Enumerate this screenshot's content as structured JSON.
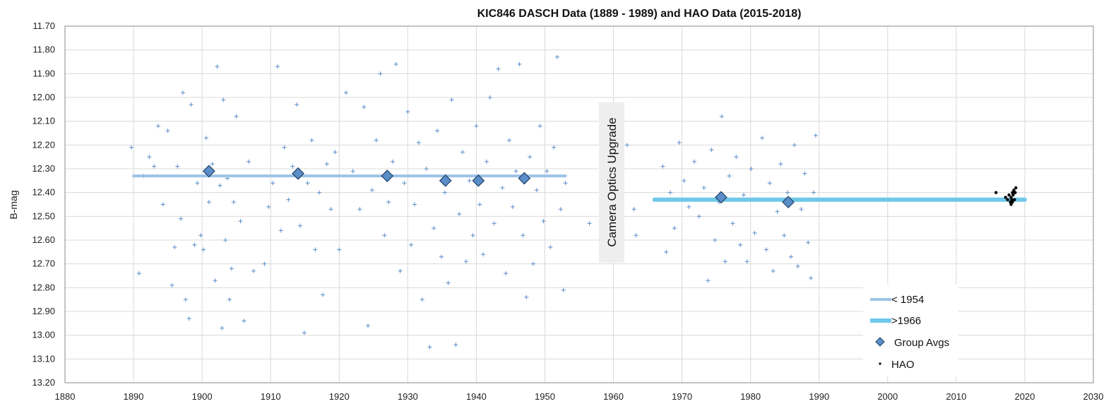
{
  "chart_data": {
    "type": "scatter",
    "title": "KIC846 DASCH Data (1889 - 1989) and HAO Data (2015-2018)",
    "xlabel": "",
    "ylabel": "B-mag",
    "xlim": [
      1880,
      2030
    ],
    "ylim": [
      11.7,
      13.2
    ],
    "y_inverted": true,
    "x_ticks": [
      1880,
      1890,
      1900,
      1910,
      1920,
      1930,
      1940,
      1950,
      1960,
      1970,
      1980,
      1990,
      2000,
      2010,
      2020,
      2030
    ],
    "y_ticks": [
      "11.70",
      "11.80",
      "11.90",
      "12.00",
      "12.10",
      "12.20",
      "12.30",
      "12.40",
      "12.50",
      "12.60",
      "12.70",
      "12.80",
      "12.90",
      "13.00",
      "13.10",
      "13.20"
    ],
    "grid": true,
    "legend_position": "bottom-right",
    "annotation": "Camera Optics Upgrade",
    "series": [
      {
        "name": "< 1954",
        "kind": "line",
        "color": "#9dc3e6",
        "points": [
          [
            1890,
            12.33
          ],
          [
            1953,
            12.33
          ]
        ]
      },
      {
        "name": ">1966",
        "kind": "line",
        "color": "#70c8e8",
        "points": [
          [
            1966,
            12.43
          ],
          [
            2020,
            12.43
          ]
        ]
      },
      {
        "name": "Group Avgs",
        "kind": "marker",
        "color": "#5b8ec9",
        "points": [
          [
            1901,
            12.31
          ],
          [
            1914,
            12.32
          ],
          [
            1927,
            12.33
          ],
          [
            1935.5,
            12.35
          ],
          [
            1940.3,
            12.35
          ],
          [
            1947,
            12.34
          ],
          [
            1975.7,
            12.42
          ],
          [
            1985.5,
            12.44
          ]
        ]
      },
      {
        "name": "HAO",
        "kind": "dot",
        "color": "#000000",
        "points": [
          [
            2015.8,
            12.4
          ],
          [
            2017.2,
            12.42
          ],
          [
            2017.5,
            12.43
          ],
          [
            2017.7,
            12.41
          ],
          [
            2017.9,
            12.44
          ],
          [
            2018.0,
            12.42
          ],
          [
            2018.1,
            12.43
          ],
          [
            2018.2,
            12.4
          ],
          [
            2018.3,
            12.41
          ],
          [
            2018.4,
            12.39
          ],
          [
            2018.5,
            12.43
          ],
          [
            2018.6,
            12.4
          ],
          [
            2018.7,
            12.38
          ],
          [
            2018.0,
            12.45
          ],
          [
            2018.2,
            12.44
          ]
        ]
      },
      {
        "kind": "cross",
        "color": "#5b8ec9",
        "points": [
          [
            1889.7,
            12.21
          ],
          [
            1890.8,
            12.74
          ],
          [
            1891.5,
            12.33
          ],
          [
            1892.3,
            12.25
          ],
          [
            1893.0,
            12.29
          ],
          [
            1893.6,
            12.12
          ],
          [
            1894.3,
            12.45
          ],
          [
            1895.0,
            12.14
          ],
          [
            1895.6,
            12.79
          ],
          [
            1896.0,
            12.63
          ],
          [
            1896.4,
            12.29
          ],
          [
            1896.9,
            12.51
          ],
          [
            1897.2,
            11.98
          ],
          [
            1897.6,
            12.85
          ],
          [
            1898.1,
            12.93
          ],
          [
            1898.4,
            12.03
          ],
          [
            1898.9,
            12.62
          ],
          [
            1899.3,
            12.36
          ],
          [
            1899.8,
            12.58
          ],
          [
            1900.2,
            12.64
          ],
          [
            1900.6,
            12.17
          ],
          [
            1901.0,
            12.44
          ],
          [
            1901.5,
            12.28
          ],
          [
            1901.9,
            12.77
          ],
          [
            1902.2,
            11.87
          ],
          [
            1902.6,
            12.37
          ],
          [
            1902.9,
            12.97
          ],
          [
            1903.1,
            12.01
          ],
          [
            1903.4,
            12.6
          ],
          [
            1903.7,
            12.34
          ],
          [
            1904.0,
            12.85
          ],
          [
            1904.3,
            12.72
          ],
          [
            1904.6,
            12.44
          ],
          [
            1905.0,
            12.08
          ],
          [
            1905.6,
            12.52
          ],
          [
            1906.1,
            12.94
          ],
          [
            1906.8,
            12.27
          ],
          [
            1907.5,
            12.73
          ],
          [
            1909.1,
            12.7
          ],
          [
            1909.7,
            12.46
          ],
          [
            1910.3,
            12.36
          ],
          [
            1911.0,
            11.87
          ],
          [
            1911.5,
            12.56
          ],
          [
            1912.0,
            12.21
          ],
          [
            1912.6,
            12.43
          ],
          [
            1913.2,
            12.29
          ],
          [
            1913.8,
            12.03
          ],
          [
            1914.3,
            12.54
          ],
          [
            1914.9,
            12.99
          ],
          [
            1915.4,
            12.36
          ],
          [
            1916.0,
            12.18
          ],
          [
            1916.5,
            12.64
          ],
          [
            1917.1,
            12.4
          ],
          [
            1917.6,
            12.83
          ],
          [
            1918.2,
            12.28
          ],
          [
            1918.8,
            12.47
          ],
          [
            1919.4,
            12.23
          ],
          [
            1920.0,
            12.64
          ],
          [
            1921.0,
            11.98
          ],
          [
            1922.0,
            12.31
          ],
          [
            1923.0,
            12.47
          ],
          [
            1923.6,
            12.04
          ],
          [
            1924.2,
            12.96
          ],
          [
            1924.8,
            12.39
          ],
          [
            1925.4,
            12.18
          ],
          [
            1926.0,
            11.9
          ],
          [
            1926.6,
            12.58
          ],
          [
            1927.2,
            12.44
          ],
          [
            1927.8,
            12.27
          ],
          [
            1928.3,
            11.86
          ],
          [
            1928.9,
            12.73
          ],
          [
            1929.5,
            12.36
          ],
          [
            1930.0,
            12.06
          ],
          [
            1930.5,
            12.62
          ],
          [
            1931.0,
            12.45
          ],
          [
            1931.6,
            12.19
          ],
          [
            1932.1,
            12.85
          ],
          [
            1932.7,
            12.3
          ],
          [
            1933.2,
            13.05
          ],
          [
            1933.8,
            12.55
          ],
          [
            1934.3,
            12.14
          ],
          [
            1934.9,
            12.67
          ],
          [
            1935.4,
            12.4
          ],
          [
            1935.9,
            12.78
          ],
          [
            1936.4,
            12.01
          ],
          [
            1937.0,
            13.04
          ],
          [
            1937.5,
            12.49
          ],
          [
            1938.0,
            12.23
          ],
          [
            1938.5,
            12.69
          ],
          [
            1939.0,
            12.35
          ],
          [
            1939.5,
            12.58
          ],
          [
            1940.0,
            12.12
          ],
          [
            1940.5,
            12.45
          ],
          [
            1941.0,
            12.66
          ],
          [
            1941.5,
            12.27
          ],
          [
            1942.0,
            12.0
          ],
          [
            1942.6,
            12.53
          ],
          [
            1943.2,
            11.88
          ],
          [
            1943.8,
            12.38
          ],
          [
            1944.3,
            12.74
          ],
          [
            1944.8,
            12.18
          ],
          [
            1945.3,
            12.46
          ],
          [
            1945.8,
            12.31
          ],
          [
            1946.3,
            11.86
          ],
          [
            1946.8,
            12.58
          ],
          [
            1947.3,
            12.84
          ],
          [
            1947.8,
            12.25
          ],
          [
            1948.3,
            12.7
          ],
          [
            1948.8,
            12.39
          ],
          [
            1949.3,
            12.12
          ],
          [
            1949.8,
            12.52
          ],
          [
            1950.3,
            12.31
          ],
          [
            1950.8,
            12.63
          ],
          [
            1951.3,
            12.21
          ],
          [
            1951.8,
            11.83
          ],
          [
            1952.3,
            12.47
          ],
          [
            1952.7,
            12.81
          ],
          [
            1953.0,
            12.36
          ],
          [
            1956.5,
            12.53
          ],
          [
            1962.0,
            12.2
          ],
          [
            1963.0,
            12.47
          ],
          [
            1963.3,
            12.58
          ],
          [
            1967.2,
            12.29
          ],
          [
            1967.7,
            12.65
          ],
          [
            1968.3,
            12.4
          ],
          [
            1968.9,
            12.55
          ],
          [
            1969.6,
            12.19
          ],
          [
            1970.3,
            12.35
          ],
          [
            1971.0,
            12.46
          ],
          [
            1971.8,
            12.27
          ],
          [
            1972.5,
            12.5
          ],
          [
            1973.2,
            12.38
          ],
          [
            1973.8,
            12.77
          ],
          [
            1974.3,
            12.22
          ],
          [
            1974.8,
            12.6
          ],
          [
            1975.4,
            12.44
          ],
          [
            1975.8,
            12.08
          ],
          [
            1976.3,
            12.69
          ],
          [
            1976.9,
            12.33
          ],
          [
            1977.4,
            12.53
          ],
          [
            1977.9,
            12.25
          ],
          [
            1978.5,
            12.62
          ],
          [
            1979.0,
            12.41
          ],
          [
            1979.5,
            12.69
          ],
          [
            1980.1,
            12.3
          ],
          [
            1980.6,
            12.57
          ],
          [
            1981.2,
            12.43
          ],
          [
            1981.7,
            12.17
          ],
          [
            1982.3,
            12.64
          ],
          [
            1982.8,
            12.36
          ],
          [
            1983.3,
            12.73
          ],
          [
            1983.9,
            12.48
          ],
          [
            1984.4,
            12.28
          ],
          [
            1984.9,
            12.58
          ],
          [
            1985.4,
            12.4
          ],
          [
            1985.9,
            12.67
          ],
          [
            1986.4,
            12.2
          ],
          [
            1986.9,
            12.71
          ],
          [
            1987.4,
            12.47
          ],
          [
            1987.9,
            12.32
          ],
          [
            1988.4,
            12.61
          ],
          [
            1988.8,
            12.76
          ],
          [
            1989.2,
            12.4
          ],
          [
            1989.5,
            12.16
          ]
        ]
      }
    ]
  }
}
